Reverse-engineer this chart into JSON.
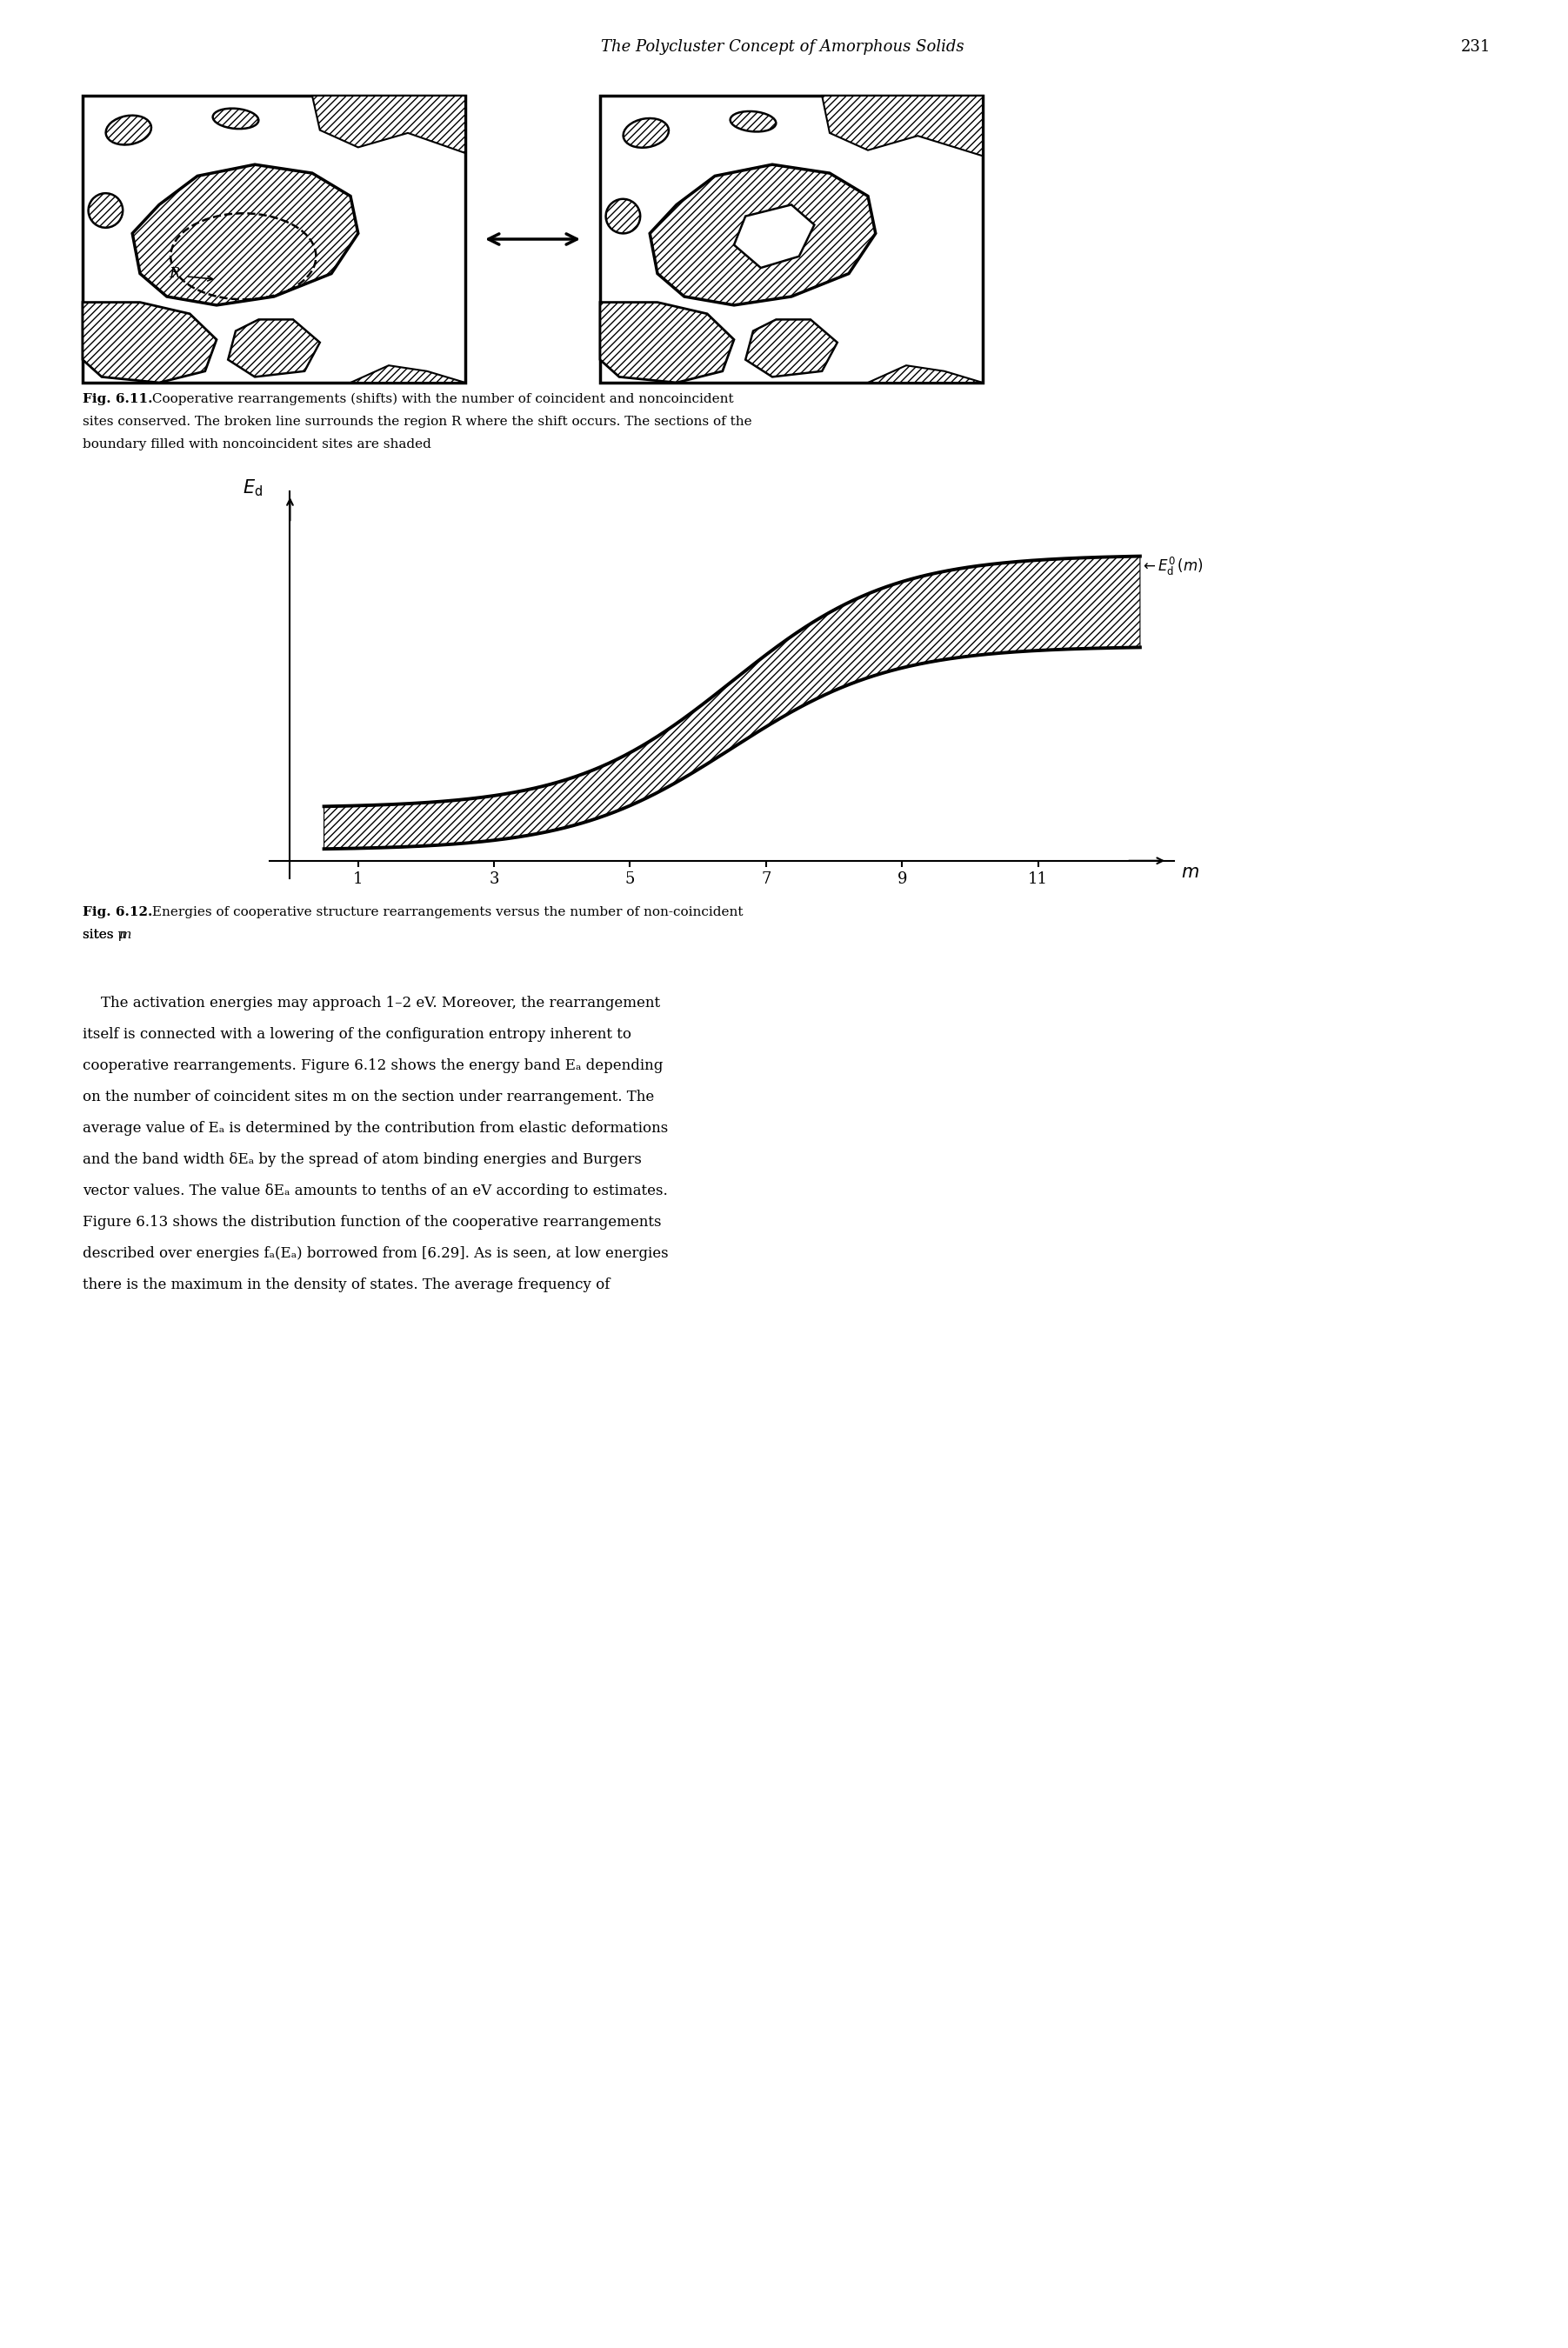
{
  "page_header": "The Polycluster Concept of Amorphous Solids",
  "page_number": "231",
  "fig611_caption_bold": "Fig. 6.11.",
  "fig611_caption_rest": " Cooperative rearrangements (shifts) with the number of coincident and noncoincident\nsites conserved. The broken line surrounds the region R where the shift occurs. The sections of the\nboundary filled with noncoincident sites are shaded",
  "fig612_caption_bold": "Fig. 6.12.",
  "fig612_caption_rest": " Energies of cooperative structure rearrangements versus the number of non-coincident\nsites m",
  "body_text_lines": [
    "    The activation energies may approach 1–2 eV. Moreover, the rearrangement",
    "itself is connected with a lowering of the configuration entropy inherent to",
    "cooperative rearrangements. Figure 6.12 shows the energy band Eₐ depending",
    "on the number of coincident sites m on the section under rearrangement. The",
    "average value of Eₐ is determined by the contribution from elastic deformations",
    "and the band width δEₐ by the spread of atom binding energies and Burgers",
    "vector values. The value δEₐ amounts to tenths of an eV according to estimates.",
    "Figure 6.13 shows the distribution function of the cooperative rearrangements",
    "described over energies fₐ(Eₐ) borrowed from [6.29]. As is seen, at low energies",
    "there is the maximum in the density of states. The average frequency of"
  ],
  "x_ticks": [
    1,
    3,
    5,
    7,
    9,
    11
  ],
  "background_color": "#ffffff",
  "text_color": "#000000",
  "header_fontsize": 13,
  "caption_fontsize": 11,
  "body_fontsize": 12,
  "plot_tick_fontsize": 13,
  "plot_label_fontsize": 14
}
